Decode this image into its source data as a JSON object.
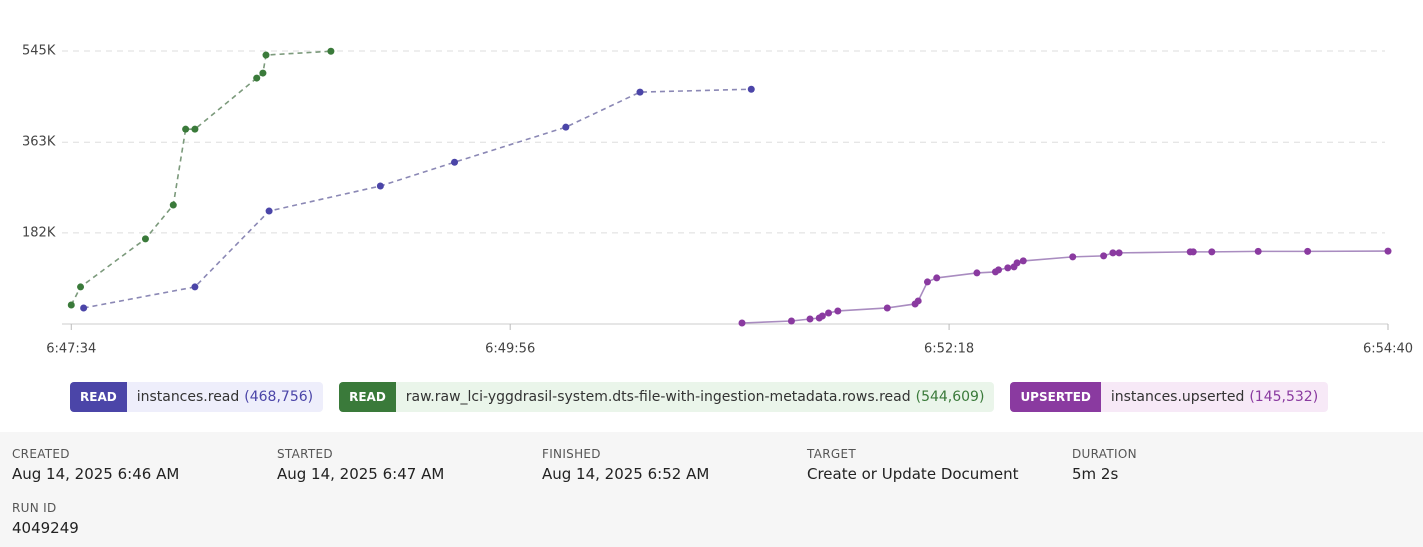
{
  "chart_data": {
    "type": "line",
    "xlim": [
      "6:47:31",
      "6:54:40"
    ],
    "xticks": [
      "6:47:34",
      "6:49:56",
      "6:52:18",
      "6:54:40"
    ],
    "ylim": [
      0,
      590000
    ],
    "yticks": [
      {
        "value": 182000,
        "label": "182K"
      },
      {
        "value": 363000,
        "label": "363K"
      },
      {
        "value": 545000,
        "label": "545K"
      }
    ],
    "grid": true,
    "series": [
      {
        "badge": "READ",
        "name": "instances.read",
        "total_label": "(468,756)",
        "color": "#4b45a8",
        "line_color": "#8b88b5",
        "line_style": "dashed",
        "chip_color": "#eeeefb",
        "x": [
          "6:47:38",
          "6:48:14",
          "6:48:38",
          "6:49:14",
          "6:49:38",
          "6:50:14",
          "6:50:38",
          "6:51:14"
        ],
        "values": [
          32000,
          74000,
          225500,
          275500,
          323000,
          393000,
          463000,
          468756
        ]
      },
      {
        "badge": "READ",
        "name": "raw.raw_lci-yggdrasil-system.dts-file-with-ingestion-metadata.rows.read",
        "total_label": "(544,609)",
        "color": "#3a7a3a",
        "line_color": "#7c9a7c",
        "line_style": "dashed",
        "chip_color": "#eaf5ea",
        "x": [
          "6:47:34",
          "6:47:37",
          "6:47:58",
          "6:48:07",
          "6:48:11",
          "6:48:14",
          "6:48:34",
          "6:48:36",
          "6:48:37",
          "6:48:58"
        ],
        "values": [
          38000,
          74000,
          170000,
          237500,
          389000,
          389000,
          491000,
          501000,
          537000,
          544609
        ]
      },
      {
        "badge": "UPSERTED",
        "name": "instances.upserted",
        "total_label": "(145,532)",
        "color": "#8a3aa0",
        "line_color": "#a98cc0",
        "line_style": "solid",
        "chip_color": "#f7e9f7",
        "x": [
          "6:51:11",
          "6:51:27",
          "6:51:33",
          "6:51:36",
          "6:51:37",
          "6:51:39",
          "6:51:42",
          "6:51:58",
          "6:52:07",
          "6:52:08",
          "6:52:11",
          "6:52:14",
          "6:52:27",
          "6:52:33",
          "6:52:34",
          "6:52:37",
          "6:52:39",
          "6:52:40",
          "6:52:42",
          "6:52:58",
          "6:53:08",
          "6:53:11",
          "6:53:13",
          "6:53:36",
          "6:53:37",
          "6:53:43",
          "6:53:58",
          "6:54:14",
          "6:54:40"
        ],
        "values": [
          2000,
          6000,
          10000,
          12000,
          16000,
          22000,
          26000,
          32000,
          40000,
          46000,
          84000,
          92000,
          102000,
          104000,
          108000,
          112000,
          114000,
          122000,
          126000,
          134000,
          136000,
          142000,
          142000,
          144000,
          144000,
          144000,
          145000,
          145000,
          145532
        ]
      }
    ]
  },
  "details": [
    {
      "label": "CREATED",
      "value": "Aug 14, 2025 6:46 AM"
    },
    {
      "label": "STARTED",
      "value": "Aug 14, 2025 6:47 AM"
    },
    {
      "label": "FINISHED",
      "value": "Aug 14, 2025 6:52 AM"
    },
    {
      "label": "TARGET",
      "value": "Create or Update Document"
    },
    {
      "label": "DURATION",
      "value": "5m 2s"
    },
    {
      "label": "RUN ID",
      "value": "4049249"
    }
  ]
}
